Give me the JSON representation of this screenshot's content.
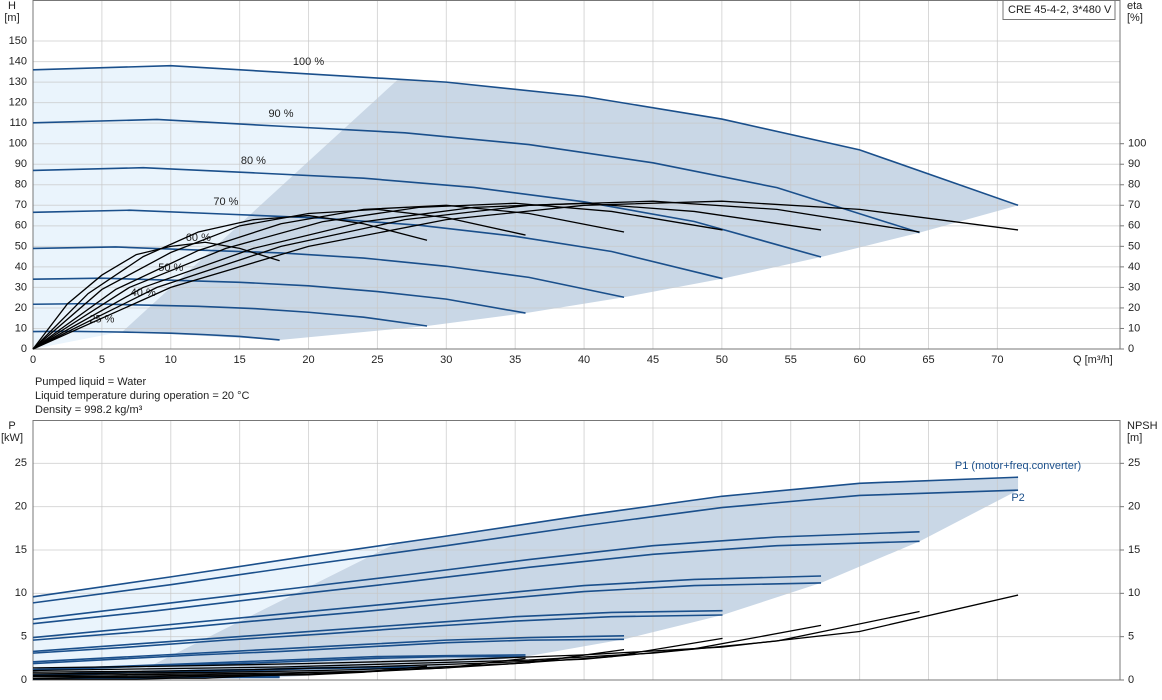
{
  "notes": [
    "Pumped liquid = Water",
    "Liquid temperature during operation = 20 °C",
    "Density = 998.2 kg/m³"
  ],
  "chart_data": [
    {
      "type": "line",
      "legend_box": "CRE 45-4-2, 3*480 V",
      "ylabel": [
        "H",
        "[m]"
      ],
      "y2label": [
        "eta",
        "[%]"
      ],
      "xlabel": "Q [m³/h]",
      "xlim": [
        0,
        78.9
      ],
      "xticks": [
        0,
        5,
        10,
        15,
        20,
        25,
        30,
        35,
        40,
        45,
        50,
        55,
        60,
        65,
        70
      ],
      "ylim": [
        0,
        170
      ],
      "yticks": [
        0,
        10,
        20,
        30,
        40,
        50,
        60,
        70,
        80,
        90,
        100,
        110,
        120,
        130,
        140,
        150
      ],
      "y2lim": [
        0,
        170
      ],
      "y2ticks": [
        0,
        10,
        20,
        30,
        40,
        50,
        60,
        70,
        80,
        90,
        100
      ],
      "grid": true,
      "areas": [
        {
          "color": "#eaf4fc",
          "x": [
            0,
            0,
            10,
            20,
            26.5,
            6.5
          ],
          "y": [
            0,
            136,
            138,
            134,
            131.4,
            8.5
          ]
        },
        {
          "color": "#c9d7e6",
          "x": [
            6.5,
            26.5,
            30,
            40,
            50,
            60,
            71.5,
            64.35,
            57.2,
            50.05,
            42.9,
            35.75,
            28.6,
            17.9
          ],
          "y": [
            8.5,
            131.4,
            130,
            123,
            112,
            97,
            70,
            56.7,
            44.8,
            34.3,
            25.2,
            17.5,
            11.2,
            4.4
          ]
        }
      ],
      "series": [
        {
          "name": "100 %",
          "color": "#1a4f8b",
          "x": [
            0,
            10,
            20,
            30,
            40,
            50,
            60,
            71.5
          ],
          "values": [
            136,
            138,
            134,
            130,
            123,
            112,
            97,
            70
          ]
        },
        {
          "name": "90 %",
          "color": "#1a4f8b",
          "x": [
            0,
            9,
            18,
            27,
            36,
            45,
            54,
            64.35
          ],
          "values": [
            110.2,
            111.8,
            108.5,
            105.3,
            99.6,
            90.7,
            78.6,
            56.7
          ]
        },
        {
          "name": "80 %",
          "color": "#1a4f8b",
          "x": [
            0,
            8,
            16,
            24,
            32,
            40,
            48,
            57.2
          ],
          "values": [
            87,
            88.3,
            85.8,
            83.2,
            78.7,
            71.7,
            62.1,
            44.8
          ]
        },
        {
          "name": "70 %",
          "color": "#1a4f8b",
          "x": [
            0,
            7,
            14,
            21,
            28,
            35,
            42,
            50.05
          ],
          "values": [
            66.6,
            67.6,
            65.7,
            63.7,
            60.3,
            54.9,
            47.5,
            34.3
          ]
        },
        {
          "name": "60 %",
          "color": "#1a4f8b",
          "x": [
            0,
            6,
            12,
            18,
            24,
            30,
            36,
            42.9
          ],
          "values": [
            49,
            49.7,
            48.2,
            46.8,
            44.3,
            40.3,
            34.9,
            25.2
          ]
        },
        {
          "name": "50 %",
          "color": "#1a4f8b",
          "x": [
            0,
            5,
            10,
            15,
            20,
            25,
            30,
            35.75
          ],
          "values": [
            34,
            34.5,
            33.5,
            32.5,
            30.8,
            28,
            24.3,
            17.5
          ]
        },
        {
          "name": "40 %",
          "color": "#1a4f8b",
          "x": [
            0,
            4,
            8,
            12,
            16,
            20,
            24,
            28.6
          ],
          "values": [
            21.8,
            22.1,
            21.4,
            20.8,
            19.7,
            17.9,
            15.5,
            11.2
          ]
        },
        {
          "name": "25 %",
          "color": "#1a4f8b",
          "x": [
            0,
            2.5,
            5,
            7.5,
            10,
            12.5,
            15,
            17.9
          ],
          "values": [
            8.5,
            8.6,
            8.4,
            8.1,
            7.7,
            7,
            6.1,
            4.4
          ]
        },
        {
          "color": "#000000",
          "axis": "y2",
          "x": [
            0,
            10,
            20,
            30,
            40,
            50,
            60,
            71.5
          ],
          "values": [
            0,
            30,
            50,
            63,
            70,
            72,
            68,
            58
          ]
        },
        {
          "color": "#000000",
          "axis": "y2",
          "x": [
            0,
            9,
            18,
            27,
            36,
            45,
            54,
            64.35
          ],
          "values": [
            0,
            30,
            50,
            63,
            70,
            72,
            68,
            57
          ]
        },
        {
          "color": "#000000",
          "axis": "y2",
          "x": [
            0,
            8,
            16,
            24,
            32,
            40,
            48,
            57.2
          ],
          "values": [
            0,
            30,
            49,
            62,
            69,
            71,
            67,
            58
          ]
        },
        {
          "color": "#000000",
          "axis": "y2",
          "x": [
            0,
            7,
            14,
            21,
            28,
            35,
            42,
            50.05
          ],
          "values": [
            0,
            30,
            49,
            62,
            69,
            71,
            67,
            58
          ]
        },
        {
          "color": "#000000",
          "axis": "y2",
          "x": [
            0,
            6,
            12,
            18,
            24,
            30,
            36,
            42.9
          ],
          "values": [
            0,
            29,
            48,
            61,
            68,
            70,
            66,
            57
          ]
        },
        {
          "color": "#000000",
          "axis": "y2",
          "x": [
            0,
            5,
            10,
            15,
            20,
            25,
            30,
            35.75
          ],
          "values": [
            0,
            29,
            47,
            60,
            66,
            68,
            64,
            55.5
          ]
        },
        {
          "color": "#000000",
          "axis": "y2",
          "x": [
            0,
            4,
            8,
            12,
            16,
            20,
            24,
            28.6
          ],
          "values": [
            0,
            27,
            45,
            57,
            63,
            65,
            61,
            53
          ]
        },
        {
          "color": "#000000",
          "axis": "y2",
          "x": [
            0,
            2.5,
            5,
            7.5,
            10,
            12.5,
            15,
            17.9
          ],
          "values": [
            0,
            22,
            36,
            46,
            50,
            52,
            49,
            43
          ]
        }
      ]
    },
    {
      "type": "line",
      "ylabel": [
        "P",
        "[kW]"
      ],
      "y2label": [
        "NPSH",
        "[m]"
      ],
      "xlim": [
        0,
        78.9
      ],
      "ylim": [
        0,
        30
      ],
      "yticks": [
        0,
        5,
        10,
        15,
        20,
        25
      ],
      "y2lim": [
        0,
        30
      ],
      "y2ticks": [
        0,
        5,
        10,
        15,
        20,
        25
      ],
      "grid": true,
      "areas": [
        {
          "color": "#eaf4fc",
          "x": [
            0,
            0,
            10,
            20,
            26.5,
            6.5
          ],
          "y": [
            0,
            9.6,
            11.9,
            14.3,
            15.9,
            0
          ]
        },
        {
          "color": "#c9d7e6",
          "x": [
            6.5,
            26.5,
            30,
            40,
            50,
            60,
            71.5,
            71.5,
            64.35,
            57.2,
            50.05,
            42.9,
            35.75,
            28.6,
            17.9
          ],
          "y": [
            0,
            15.9,
            16.6,
            19,
            21.2,
            22.7,
            23.4,
            21.9,
            16,
            11.2,
            7.5,
            4.7,
            2.7,
            1.4,
            0.3
          ]
        }
      ],
      "series": [
        {
          "name": "P1 (motor+freq.converter)",
          "color": "#1a4f8b",
          "x": [
            0,
            10,
            20,
            30,
            40,
            50,
            60,
            71.5
          ],
          "values": [
            9.6,
            11.9,
            14.3,
            16.6,
            19,
            21.2,
            22.7,
            23.4
          ]
        },
        {
          "name": "P2",
          "color": "#1a4f8b",
          "x": [
            0,
            10,
            20,
            30,
            40,
            50,
            60,
            71.5
          ],
          "values": [
            8.9,
            11,
            13.3,
            15.5,
            17.8,
            19.9,
            21.3,
            21.9
          ]
        },
        {
          "color": "#1a4f8b",
          "x": [
            0,
            9,
            18,
            27,
            36,
            45,
            54,
            64.35
          ],
          "values": [
            7,
            8.7,
            10.4,
            12.1,
            13.9,
            15.5,
            16.5,
            17.1
          ]
        },
        {
          "color": "#1a4f8b",
          "x": [
            0,
            9,
            18,
            27,
            36,
            45,
            54,
            64.35
          ],
          "values": [
            6.5,
            8,
            9.7,
            11.3,
            13,
            14.5,
            15.5,
            16
          ]
        },
        {
          "color": "#1a4f8b",
          "x": [
            0,
            8,
            16,
            24,
            32,
            40,
            48,
            57.2
          ],
          "values": [
            4.9,
            6.1,
            7.3,
            8.5,
            9.7,
            10.9,
            11.6,
            12
          ]
        },
        {
          "color": "#1a4f8b",
          "x": [
            0,
            8,
            16,
            24,
            32,
            40,
            48,
            57.2
          ],
          "values": [
            4.6,
            5.6,
            6.8,
            7.9,
            9.1,
            10.2,
            10.9,
            11.2
          ]
        },
        {
          "color": "#1a4f8b",
          "x": [
            0,
            7,
            14,
            21,
            28,
            35,
            42,
            50.05
          ],
          "values": [
            3.3,
            4.1,
            4.9,
            5.7,
            6.5,
            7.3,
            7.8,
            8
          ]
        },
        {
          "color": "#1a4f8b",
          "x": [
            0,
            7,
            14,
            21,
            28,
            35,
            42,
            50.05
          ],
          "values": [
            3.1,
            3.8,
            4.6,
            5.3,
            6.1,
            6.8,
            7.3,
            7.5
          ]
        },
        {
          "color": "#1a4f8b",
          "x": [
            0,
            6,
            12,
            18,
            24,
            30,
            36,
            42.9
          ],
          "values": [
            2.1,
            2.6,
            3.1,
            3.6,
            4.1,
            4.6,
            4.9,
            5.1
          ]
        },
        {
          "color": "#1a4f8b",
          "x": [
            0,
            6,
            12,
            18,
            24,
            30,
            36,
            42.9
          ],
          "values": [
            1.9,
            2.4,
            2.9,
            3.3,
            3.8,
            4.3,
            4.6,
            4.7
          ]
        },
        {
          "color": "#1a4f8b",
          "x": [
            0,
            5,
            10,
            15,
            20,
            25,
            30,
            35.75
          ],
          "values": [
            1.2,
            1.5,
            1.8,
            2.1,
            2.4,
            2.7,
            2.8,
            2.9
          ]
        },
        {
          "color": "#1a4f8b",
          "x": [
            0,
            5,
            10,
            15,
            20,
            25,
            30,
            35.75
          ],
          "values": [
            1.1,
            1.4,
            1.7,
            1.9,
            2.2,
            2.5,
            2.7,
            2.7
          ]
        },
        {
          "color": "#1a4f8b",
          "x": [
            0,
            4,
            8,
            12,
            16,
            20,
            24,
            28.6
          ],
          "values": [
            0.6,
            0.8,
            0.9,
            1.1,
            1.2,
            1.4,
            1.5,
            1.5
          ]
        },
        {
          "color": "#1a4f8b",
          "x": [
            0,
            4,
            8,
            12,
            16,
            20,
            24,
            28.6
          ],
          "values": [
            0.6,
            0.7,
            0.9,
            1,
            1.1,
            1.3,
            1.4,
            1.4
          ]
        },
        {
          "color": "#1a4f8b",
          "x": [
            0,
            2.5,
            5,
            7.5,
            10,
            12.5,
            15,
            17.9
          ],
          "values": [
            0.1,
            0.2,
            0.2,
            0.3,
            0.3,
            0.3,
            0.4,
            0.4
          ]
        },
        {
          "color": "#1a4f8b",
          "x": [
            0,
            2.5,
            5,
            7.5,
            10,
            12.5,
            15,
            17.9
          ],
          "values": [
            0.1,
            0.2,
            0.2,
            0.2,
            0.3,
            0.3,
            0.3,
            0.3
          ]
        },
        {
          "color": "#000000",
          "axis": "y2",
          "x": [
            0,
            10,
            20,
            30,
            40,
            50,
            60,
            71.5
          ],
          "values": [
            1.4,
            1.6,
            1.9,
            2.3,
            2.9,
            3.8,
            5.6,
            9.8
          ]
        },
        {
          "color": "#000000",
          "axis": "y2",
          "x": [
            0,
            9,
            18,
            27,
            36,
            45,
            54,
            64.35
          ],
          "values": [
            1.1,
            1.3,
            1.5,
            1.9,
            2.3,
            3.1,
            4.5,
            7.9
          ]
        },
        {
          "color": "#000000",
          "axis": "y2",
          "x": [
            0,
            8,
            16,
            24,
            32,
            40,
            48,
            57.2
          ],
          "values": [
            0.9,
            1,
            1.2,
            1.5,
            1.9,
            2.4,
            3.6,
            6.3
          ]
        },
        {
          "color": "#000000",
          "axis": "y2",
          "x": [
            0,
            7,
            14,
            21,
            28,
            35,
            42,
            50.05
          ],
          "values": [
            0.7,
            0.8,
            0.9,
            1.1,
            1.4,
            1.9,
            2.7,
            4.8
          ]
        },
        {
          "color": "#000000",
          "axis": "y2",
          "x": [
            0,
            6,
            12,
            18,
            24,
            30,
            36,
            42.9
          ],
          "values": [
            0.5,
            0.6,
            0.7,
            0.8,
            1,
            1.4,
            2,
            3.5
          ]
        },
        {
          "color": "#000000",
          "axis": "y2",
          "x": [
            0,
            5,
            10,
            15,
            20,
            25,
            30,
            35.75
          ],
          "values": [
            0.4,
            0.4,
            0.5,
            0.6,
            0.7,
            1,
            1.4,
            2.5
          ]
        },
        {
          "color": "#000000",
          "axis": "y2",
          "x": [
            0,
            4,
            8,
            12,
            16,
            20,
            24,
            28.6
          ],
          "values": [
            0.2,
            0.3,
            0.3,
            0.4,
            0.5,
            0.6,
            0.9,
            1.6
          ]
        },
        {
          "color": "#000000",
          "axis": "y2",
          "x": [
            0,
            2.5,
            5,
            7.5,
            10,
            12.5,
            15,
            17.9
          ],
          "values": [
            0.1,
            0.1,
            0.1,
            0.1,
            0.2,
            0.2,
            0.4,
            0.6
          ]
        }
      ]
    }
  ]
}
